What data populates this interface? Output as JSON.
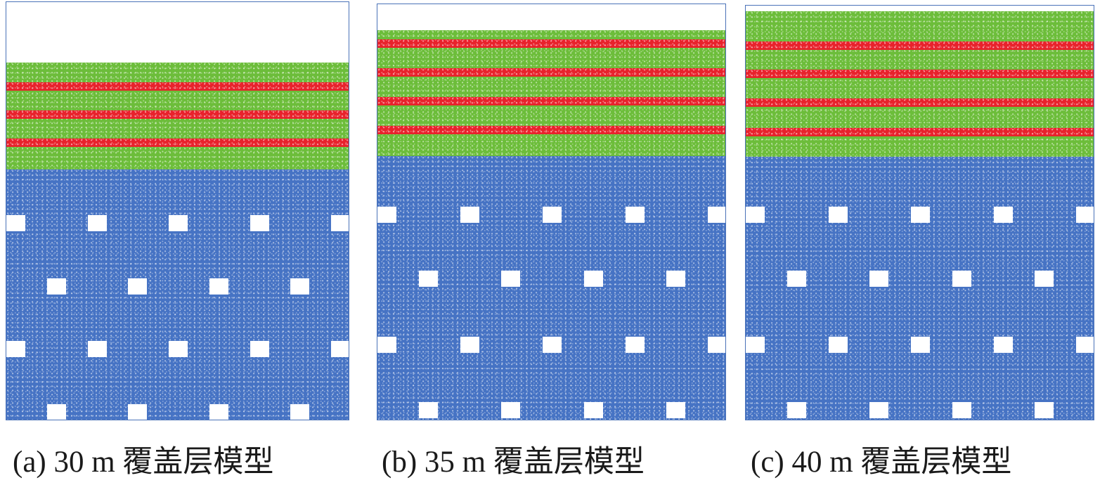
{
  "colors": {
    "cover_soil": "#6cbd3a",
    "weak_interlayer": "#e8222c",
    "rock_mass": "#4673c4",
    "border": "#4a72b8"
  },
  "panels": [
    {
      "id": "a",
      "caption": "(a) 30 m 覆盖层模型"
    },
    {
      "id": "b",
      "caption": "(b) 35 m 覆盖层模型"
    },
    {
      "id": "c",
      "caption": "(c) 40 m 覆盖层模型"
    }
  ]
}
